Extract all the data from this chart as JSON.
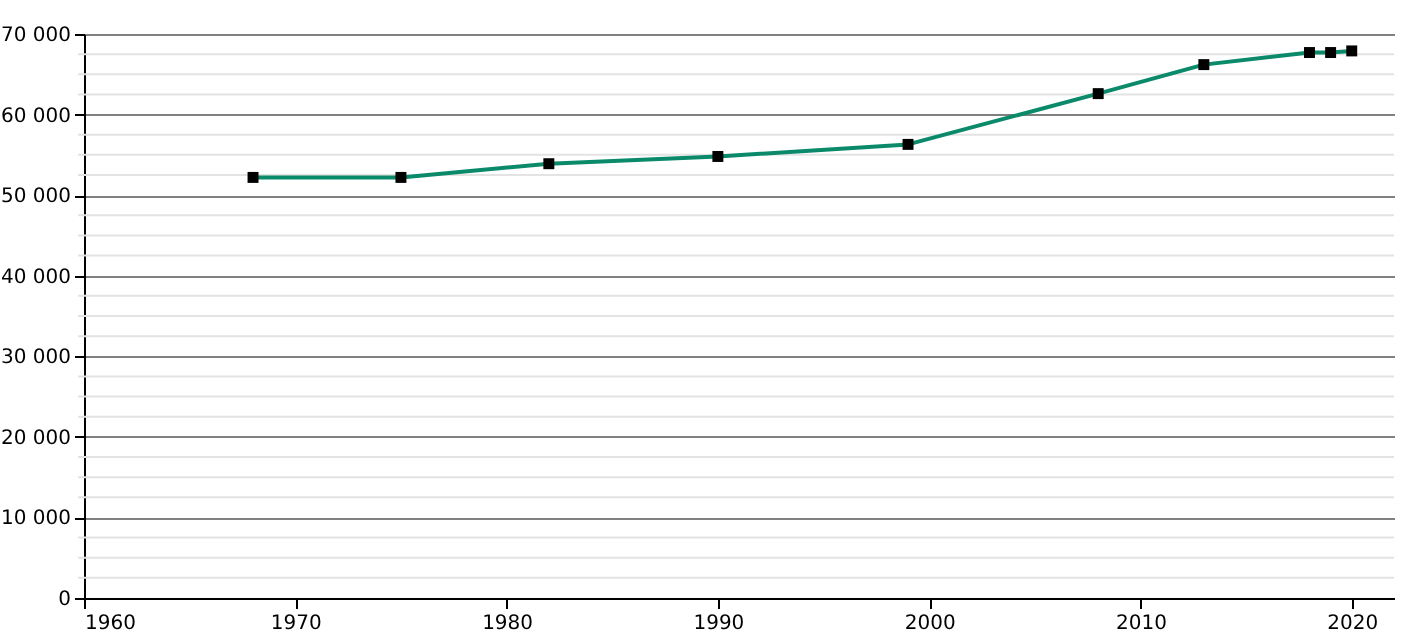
{
  "chart_data": {
    "type": "line",
    "x": [
      1968,
      1975,
      1982,
      1990,
      1999,
      2008,
      2013,
      2018,
      2019,
      2020
    ],
    "series": [
      {
        "color": "#0a8a6a",
        "values": [
          52200,
          52200,
          53900,
          54800,
          56300,
          62600,
          66200,
          67700,
          67700,
          67900
        ]
      }
    ],
    "xlim": [
      1960,
      2022
    ],
    "xticks": [
      1960,
      1970,
      1980,
      1990,
      2000,
      2010,
      2020
    ],
    "ylim": [
      0,
      70000
    ],
    "yticks": [
      {
        "value": 0,
        "label": "0"
      },
      {
        "value": 2500,
        "label": null
      },
      {
        "value": 5000,
        "label": null
      },
      {
        "value": 7500,
        "label": null
      },
      {
        "value": 10000,
        "label": "10 000"
      },
      {
        "value": 12500,
        "label": null
      },
      {
        "value": 15000,
        "label": null
      },
      {
        "value": 17500,
        "label": null
      },
      {
        "value": 20000,
        "label": "20 000"
      },
      {
        "value": 22500,
        "label": null
      },
      {
        "value": 25000,
        "label": null
      },
      {
        "value": 27500,
        "label": null
      },
      {
        "value": 30000,
        "label": "30 000"
      },
      {
        "value": 32500,
        "label": null
      },
      {
        "value": 35000,
        "label": null
      },
      {
        "value": 37500,
        "label": null
      },
      {
        "value": 40000,
        "label": "40 000"
      },
      {
        "value": 42500,
        "label": null
      },
      {
        "value": 45000,
        "label": null
      },
      {
        "value": 47500,
        "label": null
      },
      {
        "value": 50000,
        "label": "50 000"
      },
      {
        "value": 52500,
        "label": null
      },
      {
        "value": 55000,
        "label": null
      },
      {
        "value": 57500,
        "label": null
      },
      {
        "value": 60000,
        "label": "60 000"
      },
      {
        "value": 62500,
        "label": null
      },
      {
        "value": 65000,
        "label": null
      },
      {
        "value": 67500,
        "label": null
      },
      {
        "value": 70000,
        "label": "70 000"
      }
    ],
    "grid": "y",
    "marker": "square",
    "line_style": "solid"
  }
}
